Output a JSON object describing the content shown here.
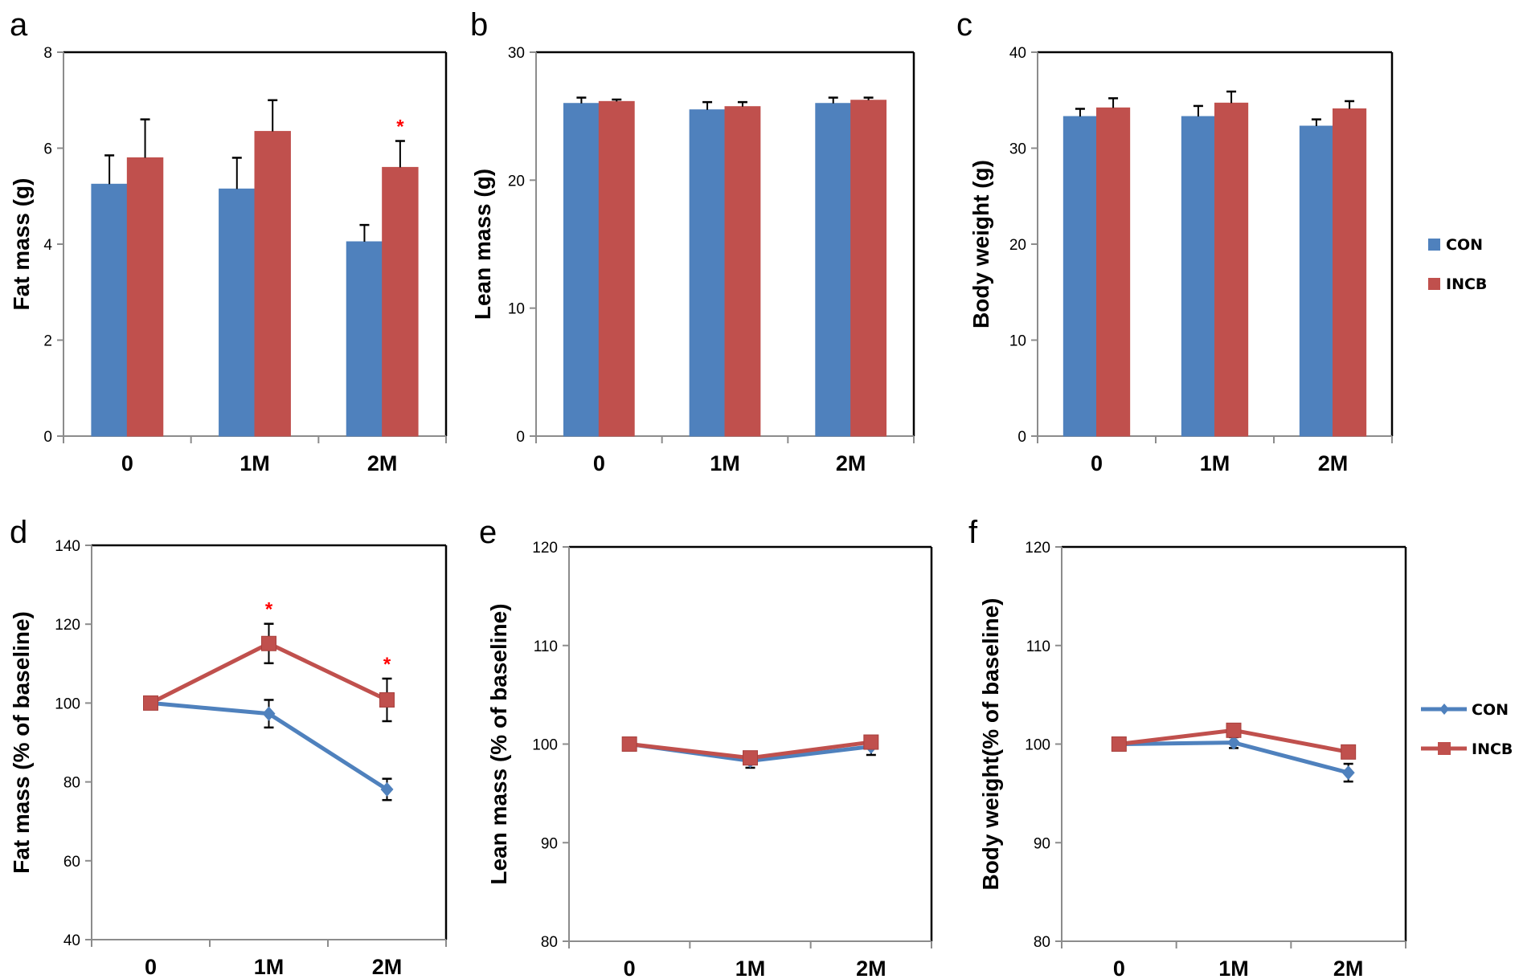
{
  "figure": {
    "colors": {
      "CON": "#4F81BD",
      "INCB": "#C0504D",
      "significance": "#FF0000"
    },
    "legend_labels": [
      "CON",
      "INCB"
    ],
    "significance_marker": "*"
  },
  "chart_data": [
    {
      "panel": "a",
      "type": "bar",
      "title": "",
      "xlabel": "",
      "ylabel": "Fat mass (g)",
      "categories": [
        "0",
        "1M",
        "2M"
      ],
      "ylim": [
        0,
        8
      ],
      "yticks": [
        0,
        2,
        4,
        6,
        8
      ],
      "grid": false,
      "series": [
        {
          "name": "CON",
          "values": [
            5.25,
            5.15,
            4.05
          ],
          "error_upper": [
            5.85,
            5.8,
            4.4
          ]
        },
        {
          "name": "INCB",
          "values": [
            5.8,
            6.35,
            5.6
          ],
          "error_upper": [
            6.6,
            7.0,
            6.15
          ]
        }
      ],
      "annotations": [
        {
          "series": "INCB",
          "category": "2M",
          "text": "*"
        }
      ]
    },
    {
      "panel": "b",
      "type": "bar",
      "title": "",
      "xlabel": "",
      "ylabel": "Lean mass (g)",
      "categories": [
        "0",
        "1M",
        "2M"
      ],
      "ylim": [
        0,
        30
      ],
      "yticks": [
        0,
        10,
        20,
        30
      ],
      "grid": false,
      "series": [
        {
          "name": "CON",
          "values": [
            26.0,
            25.5,
            26.0
          ],
          "error_upper": [
            26.45,
            26.1,
            26.45
          ]
        },
        {
          "name": "INCB",
          "values": [
            26.15,
            25.75,
            26.25
          ],
          "error_upper": [
            26.3,
            26.1,
            26.45
          ]
        }
      ],
      "annotations": []
    },
    {
      "panel": "c",
      "type": "bar",
      "title": "",
      "xlabel": "",
      "ylabel": "Body weight (g)",
      "categories": [
        "0",
        "1M",
        "2M"
      ],
      "ylim": [
        0,
        40
      ],
      "yticks": [
        0,
        10,
        20,
        30,
        40
      ],
      "grid": false,
      "legend": {
        "placement": "right",
        "entries": [
          "CON",
          "INCB"
        ]
      },
      "series": [
        {
          "name": "CON",
          "values": [
            33.3,
            33.3,
            32.3
          ],
          "error_upper": [
            34.1,
            34.4,
            33.0
          ]
        },
        {
          "name": "INCB",
          "values": [
            34.2,
            34.7,
            34.1
          ],
          "error_upper": [
            35.2,
            35.9,
            34.9
          ]
        }
      ],
      "annotations": []
    },
    {
      "panel": "d",
      "type": "line",
      "title": "",
      "xlabel": "",
      "ylabel": "Fat mass (% of baseline)",
      "categories": [
        "0",
        "1M",
        "2M"
      ],
      "ylim": [
        40,
        140
      ],
      "yticks": [
        40,
        60,
        80,
        100,
        120,
        140
      ],
      "grid": false,
      "series": [
        {
          "name": "CON",
          "marker": "diamond",
          "values": [
            100,
            97.3,
            78.1
          ],
          "error": [
            0,
            3.5,
            2.7
          ]
        },
        {
          "name": "INCB",
          "marker": "square",
          "values": [
            100,
            115.1,
            100.8
          ],
          "error": [
            0,
            5.0,
            5.4
          ]
        }
      ],
      "annotations": [
        {
          "series": "INCB",
          "category": "1M",
          "text": "*"
        },
        {
          "series": "INCB",
          "category": "2M",
          "text": "*"
        }
      ]
    },
    {
      "panel": "e",
      "type": "line",
      "title": "",
      "xlabel": "",
      "ylabel": "Lean mass (% of baseline)",
      "categories": [
        "0",
        "1M",
        "2M"
      ],
      "ylim": [
        80,
        120
      ],
      "yticks": [
        80,
        90,
        100,
        110,
        120
      ],
      "grid": false,
      "series": [
        {
          "name": "CON",
          "marker": "diamond",
          "values": [
            100,
            98.3,
            99.75
          ],
          "error": [
            0,
            0.7,
            0.85
          ]
        },
        {
          "name": "INCB",
          "marker": "square",
          "values": [
            100,
            98.6,
            100.2
          ],
          "error": [
            0,
            0.4,
            0.4
          ]
        }
      ],
      "annotations": []
    },
    {
      "panel": "f",
      "type": "line",
      "title": "",
      "xlabel": "",
      "ylabel": "Body weight(% of baseline)",
      "categories": [
        "0",
        "1M",
        "2M"
      ],
      "ylim": [
        80,
        120
      ],
      "yticks": [
        80,
        90,
        100,
        110,
        120
      ],
      "grid": false,
      "legend": {
        "placement": "right",
        "entries": [
          "CON",
          "INCB"
        ]
      },
      "series": [
        {
          "name": "CON",
          "marker": "diamond",
          "values": [
            100,
            100.15,
            97.1
          ],
          "error": [
            0,
            0.55,
            0.9
          ]
        },
        {
          "name": "INCB",
          "marker": "square",
          "values": [
            100,
            101.4,
            99.2
          ],
          "error": [
            0,
            0.3,
            0.4
          ]
        }
      ],
      "annotations": []
    }
  ]
}
